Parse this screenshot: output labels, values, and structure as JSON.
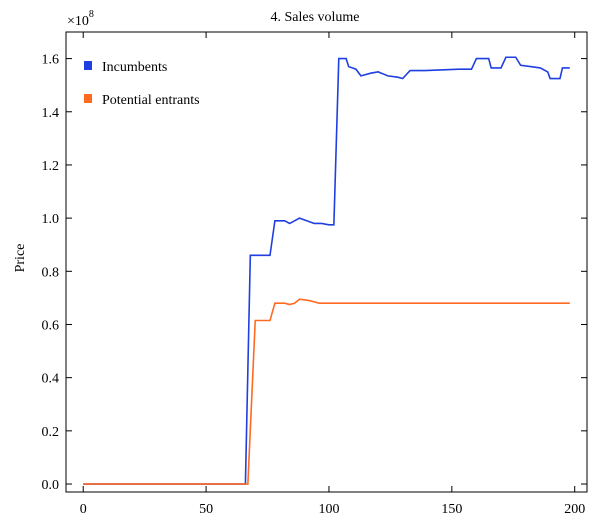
{
  "chart_data": {
    "type": "line",
    "title": "4. Sales volume",
    "xlabel": "",
    "ylabel": "Price",
    "y_multiplier_base": "×10",
    "y_multiplier_exp": "8",
    "xlim": [
      -7,
      205
    ],
    "ylim": [
      -0.03,
      1.7
    ],
    "x_ticks": [
      0,
      50,
      100,
      150,
      200
    ],
    "y_ticks": [
      0.0,
      0.2,
      0.4,
      0.6,
      0.8,
      1.0,
      1.2,
      1.4,
      1.6
    ],
    "grid": false,
    "legend_position": "top-left",
    "colors": {
      "incumbents": "#1f3fe0",
      "potential_entrants": "#ff6a22",
      "axis": "#000000"
    },
    "series": [
      {
        "name": "Incumbents",
        "color": "#1f3fe0",
        "step": true,
        "points": [
          [
            0,
            0.0
          ],
          [
            66,
            0.0
          ],
          [
            68,
            0.86
          ],
          [
            76,
            0.86
          ],
          [
            78,
            0.99
          ],
          [
            82,
            0.99
          ],
          [
            84,
            0.98
          ],
          [
            86,
            0.99
          ],
          [
            88,
            1.0
          ],
          [
            91,
            0.99
          ],
          [
            94,
            0.98
          ],
          [
            97,
            0.98
          ],
          [
            100,
            0.975
          ],
          [
            102,
            0.975
          ],
          [
            104,
            1.6
          ],
          [
            107,
            1.6
          ],
          [
            108,
            1.57
          ],
          [
            111,
            1.56
          ],
          [
            113,
            1.535
          ],
          [
            117,
            1.545
          ],
          [
            120,
            1.55
          ],
          [
            124,
            1.535
          ],
          [
            128,
            1.53
          ],
          [
            130,
            1.525
          ],
          [
            133,
            1.555
          ],
          [
            139,
            1.555
          ],
          [
            153,
            1.56
          ],
          [
            158,
            1.56
          ],
          [
            160,
            1.6
          ],
          [
            165,
            1.6
          ],
          [
            166,
            1.565
          ],
          [
            170,
            1.565
          ],
          [
            172,
            1.605
          ],
          [
            176,
            1.605
          ],
          [
            178,
            1.575
          ],
          [
            182,
            1.57
          ],
          [
            186,
            1.565
          ],
          [
            189,
            1.55
          ],
          [
            190,
            1.525
          ],
          [
            194,
            1.525
          ],
          [
            195,
            1.565
          ],
          [
            198,
            1.565
          ]
        ]
      },
      {
        "name": "Potential entrants",
        "color": "#ff6a22",
        "step": true,
        "points": [
          [
            0,
            0.0
          ],
          [
            67,
            0.0
          ],
          [
            70,
            0.615
          ],
          [
            76,
            0.615
          ],
          [
            78,
            0.68
          ],
          [
            82,
            0.68
          ],
          [
            84,
            0.675
          ],
          [
            86,
            0.68
          ],
          [
            88,
            0.695
          ],
          [
            92,
            0.69
          ],
          [
            94,
            0.685
          ],
          [
            96,
            0.68
          ],
          [
            198,
            0.68
          ]
        ]
      }
    ]
  }
}
